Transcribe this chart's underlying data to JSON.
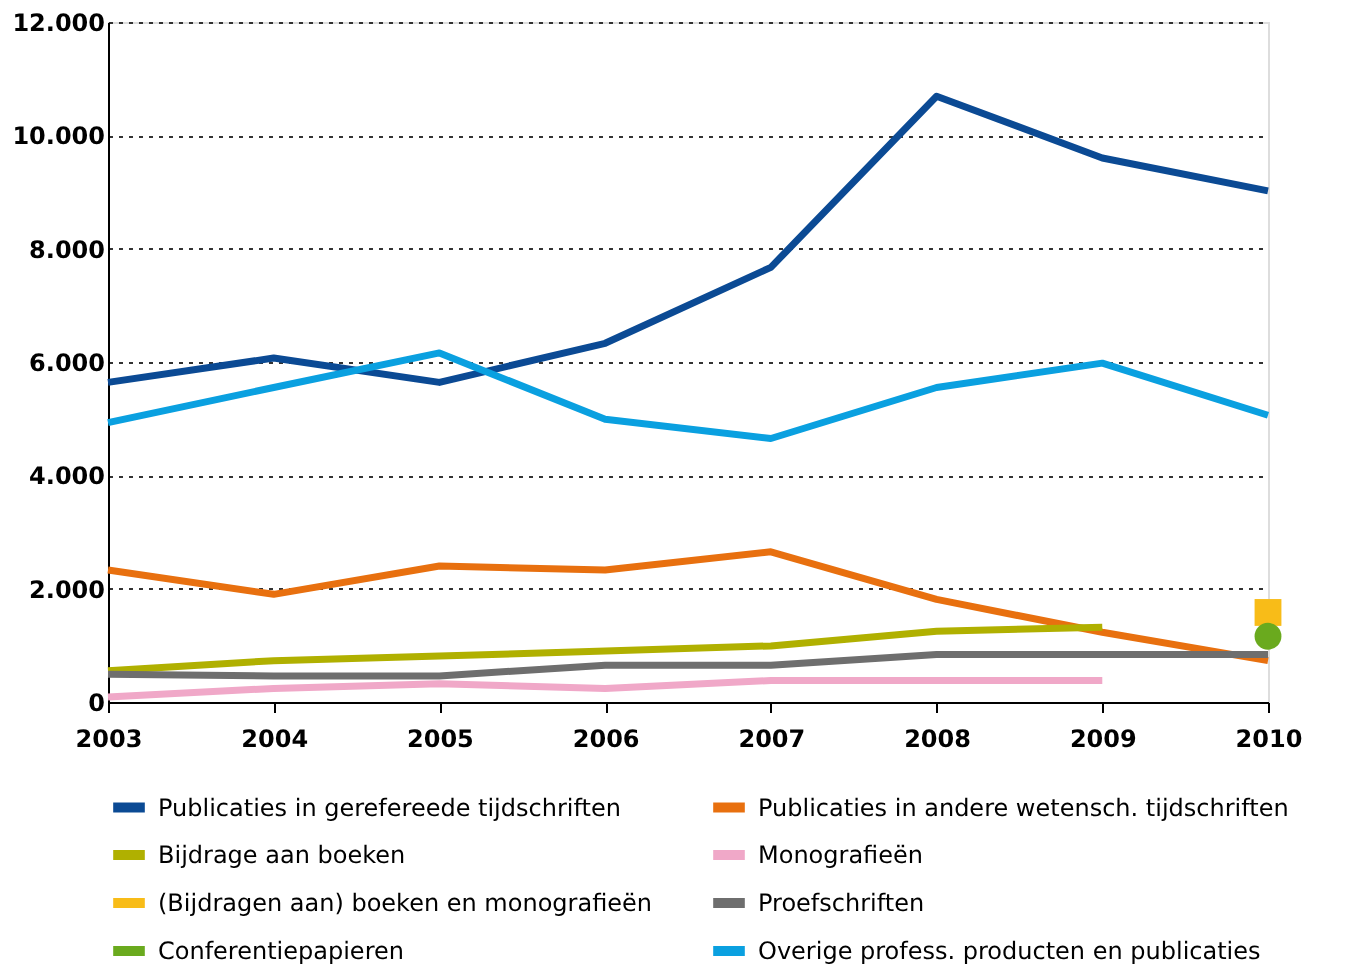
{
  "chart_data": {
    "type": "line",
    "x": [
      2003,
      2004,
      2005,
      2006,
      2007,
      2008,
      2009,
      2010
    ],
    "xlim": [
      2003,
      2010
    ],
    "xticks": [
      2003,
      2004,
      2005,
      2006,
      2007,
      2008,
      2009,
      2010
    ],
    "ylim": [
      0,
      12000
    ],
    "yticks": [
      {
        "value": 0,
        "label": "0"
      },
      {
        "value": 2000,
        "label": "2.000"
      },
      {
        "value": 4000,
        "label": "4.000"
      },
      {
        "value": 6000,
        "label": "6.000"
      },
      {
        "value": 8000,
        "label": "8.000"
      },
      {
        "value": 10000,
        "label": "10.000"
      },
      {
        "value": 12000,
        "label": "12.000"
      }
    ],
    "grid": "y",
    "legend": "bottom",
    "line_style": "solid",
    "series": [
      {
        "name": "Publicaties in gerefereede tijdschriften",
        "color": "#0b4a94",
        "values": [
          5640,
          6070,
          5640,
          6330,
          7670,
          10690,
          9600,
          9020
        ]
      },
      {
        "name": "Publicaties in andere wetensch. tijdschriften",
        "color": "#e8700f",
        "values": [
          2330,
          1900,
          2400,
          2330,
          2650,
          1810,
          1230,
          730
        ]
      },
      {
        "name": "Bijdrage aan boeken",
        "color": "#b0b000",
        "values": [
          550,
          730,
          810,
          900,
          990,
          1250,
          1320,
          null
        ]
      },
      {
        "name": "Monografieën",
        "color": "#f0a8c8",
        "values": [
          90,
          240,
          320,
          240,
          380,
          380,
          380,
          null
        ]
      },
      {
        "name": "(Bijdragen aan) boeken en monografieën",
        "color": "#f8bc18",
        "type": "scatter",
        "marker": "square",
        "values": [
          null,
          null,
          null,
          null,
          null,
          null,
          null,
          1580
        ]
      },
      {
        "name": "Proefschriften",
        "color": "#6e6e6e",
        "values": [
          490,
          460,
          460,
          650,
          650,
          840,
          840,
          840
        ]
      },
      {
        "name": "Conferentiepapieren",
        "color": "#6aaa1e",
        "type": "scatter",
        "marker": "circle",
        "values": [
          null,
          null,
          null,
          null,
          null,
          null,
          null,
          1160
        ]
      },
      {
        "name": "Overige profess. producten en publicaties",
        "color": "#0aa0e0",
        "values": [
          4930,
          5550,
          6160,
          4990,
          4650,
          5550,
          5980,
          5060
        ]
      }
    ]
  }
}
